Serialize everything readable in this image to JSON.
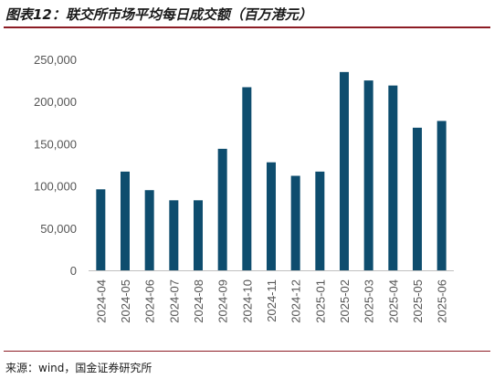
{
  "title": "图表12：联交所市场平均每日成交额（百万港元）",
  "source": "来源：wind，国金证券研究所",
  "colors": {
    "bar": "#0e4d6e",
    "rule": "#8c1c24",
    "axis": "#bfbfbf"
  },
  "chart_data": {
    "type": "bar",
    "title": "图表12：联交所市场平均每日成交额（百万港元）",
    "categories": [
      "2024-04",
      "2024-05",
      "2024-06",
      "2024-07",
      "2024-08",
      "2024-09",
      "2024-10",
      "2024-11",
      "2024-12",
      "2025-01",
      "2025-02",
      "2025-03",
      "2025-04",
      "2025-05",
      "2025-06"
    ],
    "series": [
      {
        "values": [
          96000,
          117000,
          95000,
          83000,
          83000,
          144000,
          217000,
          128000,
          112000,
          117000,
          235000,
          225000,
          219000,
          169000,
          177000
        ]
      }
    ],
    "ylim": [
      0,
      250000
    ],
    "yticks": [
      0,
      50000,
      100000,
      150000,
      200000,
      250000
    ],
    "ytick_labels": [
      "0",
      "50,000",
      "100,000",
      "150,000",
      "200,000",
      "250,000"
    ],
    "grid": false,
    "legend": "none"
  }
}
